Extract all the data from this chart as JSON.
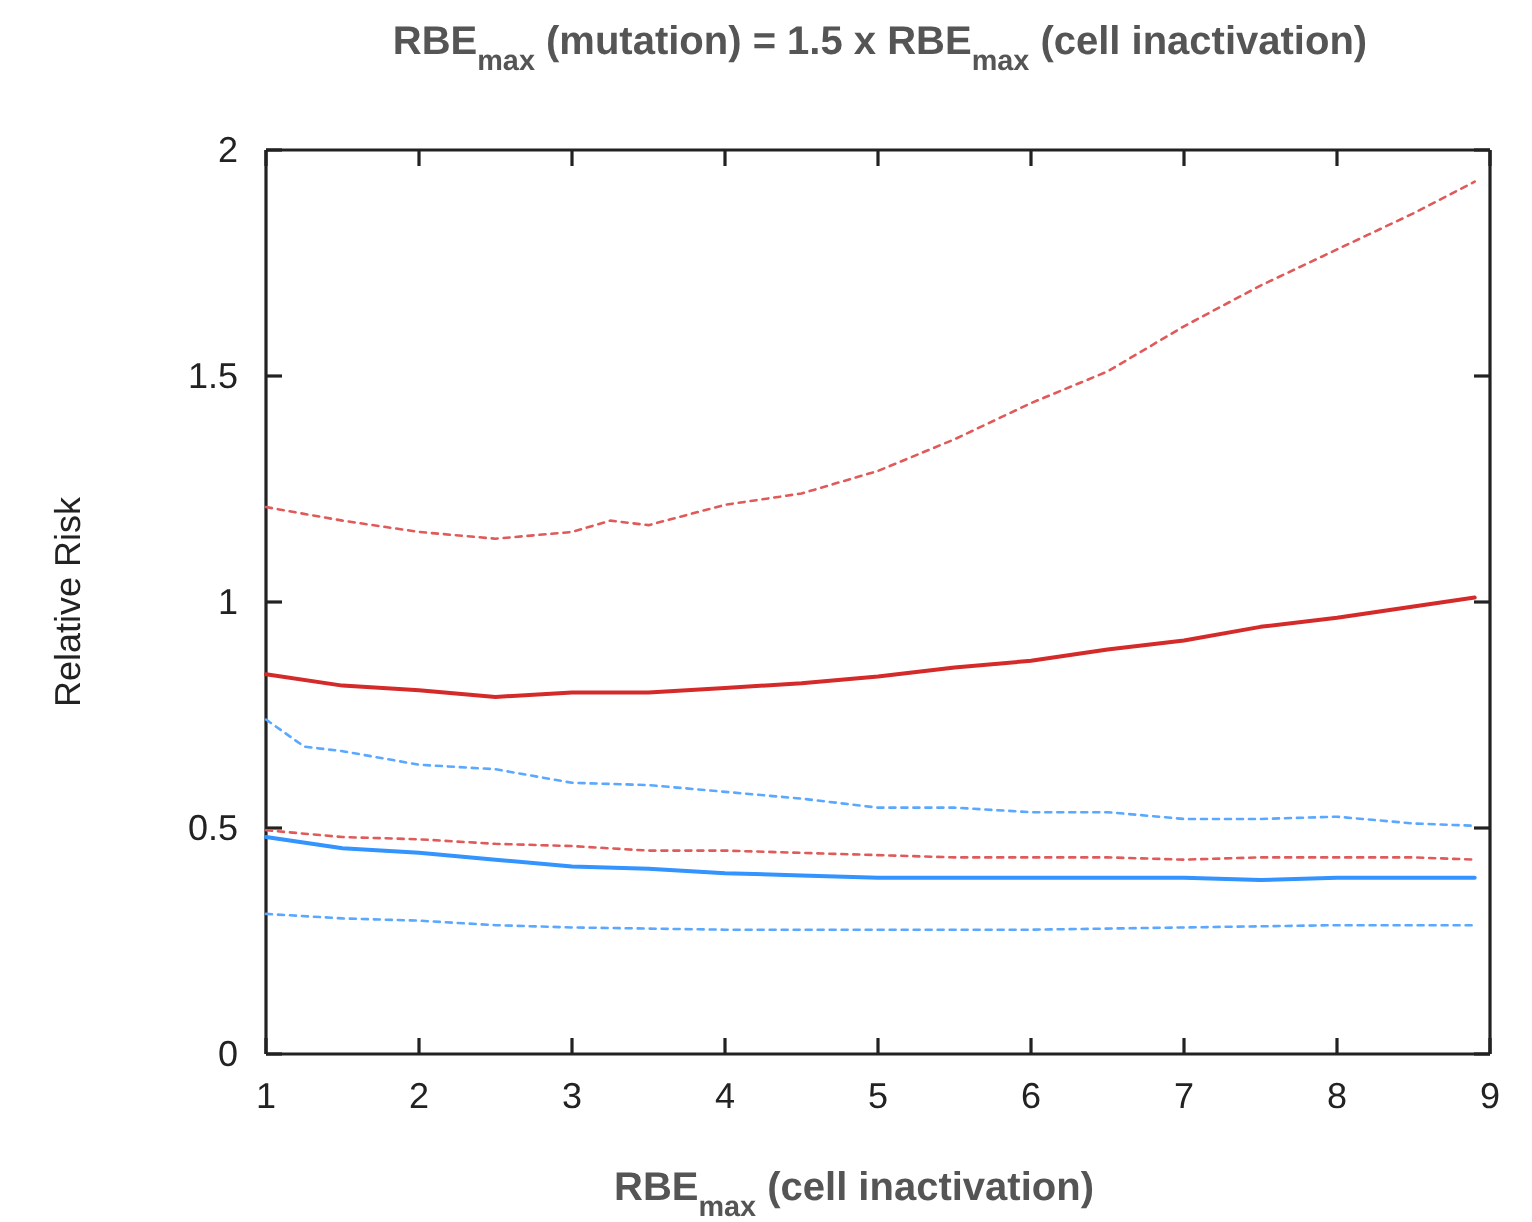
{
  "chart_data": {
    "type": "line",
    "title": "RBE$_{max}$ (mutation) = 1.5 x RBE$_{max}$ (cell inactivation)",
    "xlabel": "RBE$_{max}$ (cell inactivation)",
    "ylabel": "Relative Risk",
    "xlim": [
      1,
      9
    ],
    "ylim": [
      0,
      2
    ],
    "xticks": [
      1,
      2,
      3,
      4,
      5,
      6,
      7,
      8,
      9
    ],
    "yticks": [
      0,
      {
        "value": 0.5,
        "label": "0.5"
      },
      1,
      {
        "value": 1.5,
        "label": "1.5"
      },
      2
    ],
    "grid": false,
    "marker": "none",
    "series": [
      {
        "color": "#d42a2a",
        "line_style": "solid",
        "x": [
          1,
          1.5,
          2,
          2.5,
          3,
          3.5,
          4,
          4.5,
          5,
          5.5,
          6,
          6.5,
          7,
          7.5,
          8,
          8.5,
          8.9
        ],
        "values": [
          0.84,
          0.815,
          0.805,
          0.79,
          0.8,
          0.8,
          0.81,
          0.82,
          0.835,
          0.855,
          0.87,
          0.895,
          0.915,
          0.945,
          0.965,
          0.99,
          1.01
        ]
      },
      {
        "color": "#e05a5a",
        "line_style": "dotted",
        "x": [
          1,
          1.5,
          2,
          2.5,
          3,
          3.25,
          3.5,
          4,
          4.5,
          5,
          5.5,
          6,
          6.5,
          7,
          7.5,
          8,
          8.5,
          8.9
        ],
        "values": [
          1.21,
          1.18,
          1.155,
          1.14,
          1.155,
          1.18,
          1.17,
          1.215,
          1.24,
          1.29,
          1.36,
          1.44,
          1.51,
          1.61,
          1.7,
          1.78,
          1.86,
          1.93
        ]
      },
      {
        "color": "#e05a5a",
        "line_style": "dotted",
        "x": [
          1,
          1.5,
          2,
          2.5,
          3,
          3.5,
          4,
          4.5,
          5,
          5.5,
          6,
          6.5,
          7,
          7.5,
          8,
          8.5,
          8.9
        ],
        "values": [
          0.495,
          0.48,
          0.475,
          0.465,
          0.46,
          0.45,
          0.45,
          0.445,
          0.44,
          0.435,
          0.435,
          0.435,
          0.43,
          0.435,
          0.435,
          0.435,
          0.43
        ]
      },
      {
        "color": "#3393ff",
        "line_style": "solid",
        "x": [
          1,
          1.5,
          2,
          2.5,
          3,
          3.5,
          4,
          4.5,
          5,
          5.5,
          6,
          6.5,
          7,
          7.5,
          8,
          8.5,
          8.9
        ],
        "values": [
          0.48,
          0.455,
          0.445,
          0.43,
          0.415,
          0.41,
          0.4,
          0.395,
          0.39,
          0.39,
          0.39,
          0.39,
          0.39,
          0.385,
          0.39,
          0.39,
          0.39
        ]
      },
      {
        "color": "#5aa8ff",
        "line_style": "dotted",
        "x": [
          1,
          1.25,
          1.5,
          2,
          2.5,
          3,
          3.5,
          4,
          4.5,
          5,
          5.5,
          6,
          6.5,
          7,
          7.5,
          8,
          8.5,
          8.9
        ],
        "values": [
          0.74,
          0.68,
          0.67,
          0.64,
          0.63,
          0.6,
          0.595,
          0.58,
          0.565,
          0.545,
          0.545,
          0.535,
          0.535,
          0.52,
          0.52,
          0.525,
          0.51,
          0.505
        ]
      },
      {
        "color": "#5aa8ff",
        "line_style": "dotted",
        "x": [
          1,
          1.5,
          2,
          2.5,
          3,
          4,
          5,
          6,
          7,
          8,
          8.9
        ],
        "values": [
          0.31,
          0.3,
          0.295,
          0.285,
          0.28,
          0.275,
          0.275,
          0.275,
          0.28,
          0.285,
          0.285
        ]
      }
    ]
  }
}
